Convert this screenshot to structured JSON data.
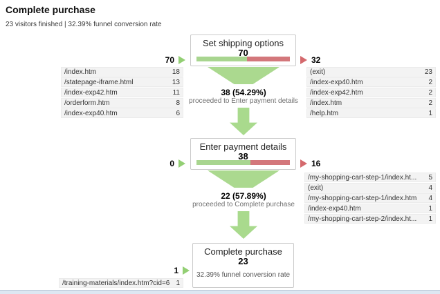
{
  "header": {
    "title": "Complete purchase",
    "subtitle": "23 visitors finished | 32.39% funnel conversion rate"
  },
  "colors": {
    "proceed_green": "#a8d58f",
    "exit_red": "#d3777b",
    "arrow_green": "#a9da8d"
  },
  "steps": [
    {
      "name": "Set shipping options",
      "count": "70",
      "entrances": "70",
      "exits": "32",
      "green_pct": 54.29
    },
    {
      "name": "Enter payment details",
      "count": "38",
      "entrances": "0",
      "exits": "16",
      "green_pct": 57.89
    },
    {
      "name": "Complete purchase",
      "count": "23",
      "entrances": "1",
      "note": "32.39% funnel conversion rate"
    }
  ],
  "transitions": [
    {
      "stat": "38 (54.29%)",
      "caption": "proceeded to Enter payment details"
    },
    {
      "stat": "22 (57.89%)",
      "caption": "proceeded to Complete purchase"
    }
  ],
  "tables": {
    "step1_entry": {
      "rows": [
        {
          "label": "/index.htm",
          "value": "18"
        },
        {
          "label": "/statepage-iframe.html",
          "value": "13"
        },
        {
          "label": "/index-exp42.htm",
          "value": "11"
        },
        {
          "label": "/orderform.htm",
          "value": "8"
        },
        {
          "label": "/index-exp40.htm",
          "value": "6"
        }
      ]
    },
    "step1_exit": {
      "rows": [
        {
          "label": "(exit)",
          "value": "23"
        },
        {
          "label": "/index-exp40.htm",
          "value": "2"
        },
        {
          "label": "/index-exp42.htm",
          "value": "2"
        },
        {
          "label": "/index.htm",
          "value": "2"
        },
        {
          "label": "/help.htm",
          "value": "1"
        }
      ]
    },
    "step2_exit": {
      "rows": [
        {
          "label": "/my-shopping-cart-step-1/index.ht...",
          "value": "5"
        },
        {
          "label": "(exit)",
          "value": "4"
        },
        {
          "label": "/my-shopping-cart-step-1/index.htm",
          "value": "4"
        },
        {
          "label": "/index-exp40.htm",
          "value": "1"
        },
        {
          "label": "/my-shopping-cart-step-2/index.ht...",
          "value": "1"
        }
      ]
    },
    "step3_entry": {
      "rows": [
        {
          "label": "/training-materials/index.htm?cid=6",
          "value": "1"
        }
      ]
    }
  }
}
